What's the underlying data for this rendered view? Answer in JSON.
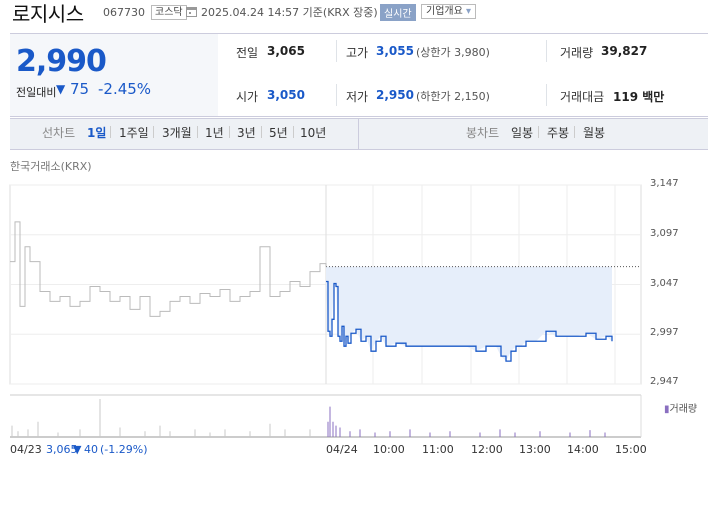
{
  "header": {
    "stock_name": "로지시스",
    "stock_code": "067730",
    "market_badge": "코스닥",
    "datetime_text": "2025.04.24 14:57 기준(KRX 장중)",
    "live_button": "실시간",
    "company_info_button": "기업개요"
  },
  "price": {
    "current": "2,990",
    "change_label": "전일대비",
    "change_arrow": "▼",
    "change_value": "75",
    "change_percent": "-2.45%"
  },
  "stats": {
    "prev_close": {
      "label": "전일",
      "value": "3,065"
    },
    "high": {
      "label": "고가",
      "value": "3,055",
      "sub": "(상한가 3,980)"
    },
    "volume": {
      "label": "거래량",
      "value": "39,827"
    },
    "open": {
      "label": "시가",
      "value": "3,050"
    },
    "low": {
      "label": "저가",
      "value": "2,950",
      "sub": "(하한가 2,150)"
    },
    "trade_value": {
      "label": "거래대금",
      "value": "119 백만"
    }
  },
  "tabs": {
    "line_label": "선차트",
    "line_periods": [
      "1일",
      "1주일",
      "3개월",
      "1년",
      "3년",
      "5년",
      "10년"
    ],
    "candle_label": "봉차트",
    "candle_periods": [
      "일봉",
      "주봉",
      "월봉"
    ],
    "selected": "1일"
  },
  "exchange_label": "한국거래소(KRX)",
  "volume_legend": "거래량",
  "colors": {
    "accent": "#1a59c8",
    "down": "#1a59c8",
    "fill": "#e6eefa",
    "prev_line": "#bbbbbb"
  },
  "chart_data": {
    "type": "line",
    "y_ticks": [
      "3,147",
      "3,097",
      "3,047",
      "2,997",
      "2,947"
    ],
    "ylim": [
      2947,
      3147
    ],
    "reference_price": 3065,
    "x_labels": [
      "04/23",
      "04/24",
      "10:00",
      "11:00",
      "12:00",
      "13:00",
      "14:00",
      "15:00"
    ],
    "footer_prev_day": {
      "date": "04/23",
      "close": "3,065",
      "arrow": "▼",
      "change": "40",
      "percent": "(-1.29%)"
    },
    "series": [
      {
        "date": "04/23",
        "x": [
          0,
          5,
          10,
          15,
          20,
          30,
          40,
          50,
          60,
          70,
          80,
          90,
          100,
          110,
          120,
          130,
          140,
          150,
          160,
          170,
          180,
          190,
          200,
          210,
          220,
          230,
          240,
          250,
          260,
          270,
          280,
          290,
          300,
          310,
          316
        ],
        "values": [
          3070,
          3110,
          3025,
          3085,
          3070,
          3040,
          3030,
          3035,
          3025,
          3030,
          3045,
          3040,
          3030,
          3035,
          3022,
          3035,
          3015,
          3020,
          3030,
          3035,
          3028,
          3038,
          3035,
          3042,
          3030,
          3035,
          3040,
          3085,
          3035,
          3040,
          3050,
          3045,
          3060,
          3068,
          3065
        ]
      },
      {
        "date": "04/24",
        "x": [
          0,
          2,
          4,
          6,
          8,
          10,
          12,
          14,
          16,
          18,
          20,
          22,
          25,
          30,
          35,
          40,
          45,
          50,
          55,
          60,
          70,
          80,
          90,
          100,
          110,
          120,
          130,
          140,
          150,
          160,
          170,
          175,
          180,
          185,
          190,
          195,
          200,
          210,
          220,
          230,
          240,
          250,
          260,
          270,
          280,
          286
        ],
        "values": [
          3050,
          3000,
          2995,
          3012,
          3048,
          3045,
          2995,
          2990,
          3005,
          2985,
          2995,
          2988,
          2998,
          3002,
          2990,
          2995,
          2980,
          2990,
          2995,
          2985,
          2988,
          2985,
          2985,
          2985,
          2985,
          2985,
          2985,
          2985,
          2980,
          2985,
          2985,
          2975,
          2970,
          2980,
          2985,
          2985,
          2990,
          2990,
          3000,
          2995,
          2995,
          2995,
          2998,
          2992,
          2995,
          2990
        ]
      }
    ],
    "volume_bars": [
      {
        "x": 2,
        "v": 0.3
      },
      {
        "x": 8,
        "v": 0.15
      },
      {
        "x": 18,
        "v": 0.2
      },
      {
        "x": 28,
        "v": 0.4
      },
      {
        "x": 48,
        "v": 0.12
      },
      {
        "x": 70,
        "v": 0.2
      },
      {
        "x": 90,
        "v": 1.0
      },
      {
        "x": 110,
        "v": 0.25
      },
      {
        "x": 135,
        "v": 0.15
      },
      {
        "x": 150,
        "v": 0.3
      },
      {
        "x": 160,
        "v": 0.15
      },
      {
        "x": 185,
        "v": 0.2
      },
      {
        "x": 200,
        "v": 0.12
      },
      {
        "x": 215,
        "v": 0.2
      },
      {
        "x": 240,
        "v": 0.15
      },
      {
        "x": 260,
        "v": 0.35
      },
      {
        "x": 275,
        "v": 0.2
      },
      {
        "x": 300,
        "v": 0.2
      },
      {
        "x": 318,
        "v": 0.4
      },
      {
        "x": 320,
        "v": 0.8
      },
      {
        "x": 323,
        "v": 0.4
      },
      {
        "x": 326,
        "v": 0.3
      },
      {
        "x": 330,
        "v": 0.25
      },
      {
        "x": 340,
        "v": 0.15
      },
      {
        "x": 350,
        "v": 0.2
      },
      {
        "x": 365,
        "v": 0.12
      },
      {
        "x": 380,
        "v": 0.15
      },
      {
        "x": 400,
        "v": 0.2
      },
      {
        "x": 420,
        "v": 0.12
      },
      {
        "x": 440,
        "v": 0.15
      },
      {
        "x": 470,
        "v": 0.12
      },
      {
        "x": 490,
        "v": 0.2
      },
      {
        "x": 505,
        "v": 0.12
      },
      {
        "x": 530,
        "v": 0.15
      },
      {
        "x": 560,
        "v": 0.12
      },
      {
        "x": 580,
        "v": 0.18
      },
      {
        "x": 595,
        "v": 0.12
      }
    ]
  }
}
